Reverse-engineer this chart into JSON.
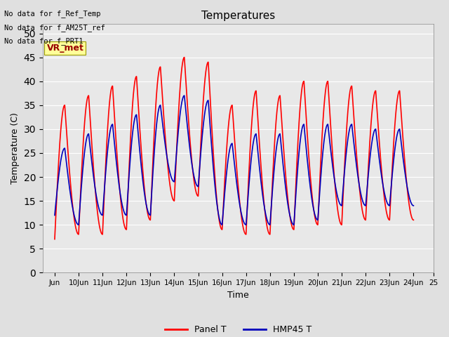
{
  "title": "Temperatures",
  "xlabel": "Time",
  "ylabel": "Temperature (C)",
  "ylim": [
    0,
    52
  ],
  "yticks": [
    0,
    5,
    10,
    15,
    20,
    25,
    30,
    35,
    40,
    45,
    50
  ],
  "x_tick_labels": [
    "Jun",
    "10Jun",
    "11Jun",
    "12Jun",
    "13Jun",
    "14Jun",
    "15Jun",
    "16Jun",
    "17Jun",
    "18Jun",
    "19Jun",
    "20Jun",
    "21Jun",
    "22Jun",
    "23Jun",
    "24Jun",
    "25"
  ],
  "annotations": [
    "No data for f_Ref_Temp",
    "No data for f_AM25T_ref",
    "No data for f_PRT1"
  ],
  "vr_met_label": "VR_met",
  "panel_t_color": "#ff0000",
  "hmp45_t_color": "#0000bb",
  "bg_color": "#e0e0e0",
  "plot_bg_color": "#e8e8e8",
  "legend_panel_label": "Panel T",
  "legend_hmp45_label": "HMP45 T",
  "panel_peaks": [
    35,
    37,
    39,
    41,
    43,
    45,
    44,
    35,
    38,
    37,
    40,
    40,
    39,
    38,
    38
  ],
  "panel_troughs": [
    7,
    8,
    8,
    9,
    11,
    15,
    16,
    9,
    8,
    8,
    9,
    10,
    10,
    11,
    11,
    11
  ],
  "hmp45_peaks": [
    26,
    29,
    31,
    33,
    35,
    37,
    36,
    27,
    29,
    29,
    31,
    31,
    31,
    30,
    30
  ],
  "hmp45_troughs": [
    12,
    10,
    12,
    12,
    12,
    19,
    18,
    10,
    10,
    10,
    10,
    11,
    14,
    14,
    14,
    14
  ]
}
